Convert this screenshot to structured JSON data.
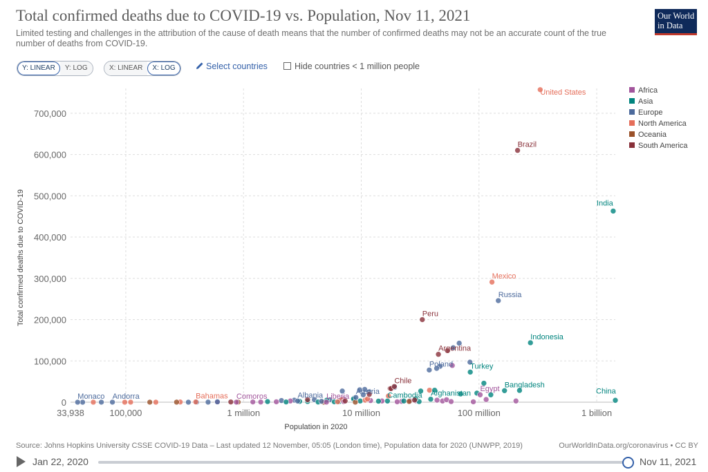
{
  "header": {
    "title": "Total confirmed deaths due to COVID-19 vs. Population, Nov 11, 2021",
    "subtitle": "Limited testing and challenges in the attribution of the cause of death means that the number of confirmed deaths may not be an accurate count of the true number of deaths from COVID-19.",
    "logo_line1": "Our World",
    "logo_line2": "in Data"
  },
  "controls": {
    "y_linear": "Y: LINEAR",
    "y_log": "Y: LOG",
    "x_linear": "X: LINEAR",
    "x_log": "X: LOG",
    "select_countries": "Select countries",
    "hide_small": "Hide countries < 1 million people",
    "pencil_icon": "pencil-icon"
  },
  "footer": {
    "source": "Source: Johns Hopkins University CSSE COVID-19 Data – Last updated 12 November, 05:05 (London time), Population data for 2020 (UNWPP, 2019)",
    "owid": "OurWorldInData.org/coronavirus • CC BY"
  },
  "timeline": {
    "start": "Jan 22, 2020",
    "end": "Nov 11, 2021",
    "position": 1.0
  },
  "colors": {
    "Africa": "#a2559c",
    "Asia": "#00847e",
    "Europe": "#4c6a9c",
    "North America": "#e56e5a",
    "Oceania": "#9a5129",
    "South America": "#883039"
  },
  "chart_data": {
    "type": "scatter",
    "title": "Total confirmed deaths due to COVID-19 vs. Population, Nov 11, 2021",
    "xlabel": "Population in 2020",
    "ylabel": "Total confirmed deaths due to COVID-19",
    "x_scale": "log",
    "y_scale": "linear",
    "xlim": [
      33938,
      1439000000
    ],
    "ylim": [
      0,
      760000
    ],
    "x_ticks": [
      {
        "v": 33938,
        "label": "33,938"
      },
      {
        "v": 100000,
        "label": "100,000"
      },
      {
        "v": 1000000,
        "label": "1 million"
      },
      {
        "v": 10000000,
        "label": "10 million"
      },
      {
        "v": 100000000,
        "label": "100 million"
      },
      {
        "v": 1000000000,
        "label": "1 billion"
      }
    ],
    "y_ticks": [
      {
        "v": 0,
        "label": "0"
      },
      {
        "v": 100000,
        "label": "100,000"
      },
      {
        "v": 200000,
        "label": "200,000"
      },
      {
        "v": 300000,
        "label": "300,000"
      },
      {
        "v": 400000,
        "label": "400,000"
      },
      {
        "v": 500000,
        "label": "500,000"
      },
      {
        "v": 600000,
        "label": "600,000"
      },
      {
        "v": 700000,
        "label": "700,000"
      }
    ],
    "grid": true,
    "legend_position": "right",
    "legend": [
      "Africa",
      "Asia",
      "Europe",
      "North America",
      "Oceania",
      "South America"
    ],
    "points": [
      {
        "label": "United States",
        "x": 331000000,
        "y": 757000,
        "region": "North America"
      },
      {
        "label": "Brazil",
        "x": 212600000,
        "y": 610000,
        "region": "South America"
      },
      {
        "label": "India",
        "x": 1380000000,
        "y": 463000,
        "region": "Asia"
      },
      {
        "label": "Mexico",
        "x": 128900000,
        "y": 291000,
        "region": "North America"
      },
      {
        "label": "Russia",
        "x": 145900000,
        "y": 246000,
        "region": "Europe"
      },
      {
        "label": "Peru",
        "x": 33000000,
        "y": 200000,
        "region": "South America"
      },
      {
        "label": "Indonesia",
        "x": 273500000,
        "y": 144000,
        "region": "Asia"
      },
      {
        "label": "Argentina",
        "x": 45200000,
        "y": 116000,
        "region": "South America"
      },
      {
        "label": "Poland",
        "x": 37800000,
        "y": 78000,
        "region": "Europe"
      },
      {
        "label": "Turkey",
        "x": 84300000,
        "y": 73000,
        "region": "Asia"
      },
      {
        "label": "Chile",
        "x": 19100000,
        "y": 38000,
        "region": "South America"
      },
      {
        "label": "Bangladesh",
        "x": 164700000,
        "y": 28000,
        "region": "Asia"
      },
      {
        "label": "Egypt",
        "x": 102300000,
        "y": 18000,
        "region": "Africa"
      },
      {
        "label": "Austria",
        "x": 9000000,
        "y": 11500,
        "region": "Europe"
      },
      {
        "label": "Afghanistan",
        "x": 38900000,
        "y": 7300,
        "region": "Asia"
      },
      {
        "label": "Albania",
        "x": 2880000,
        "y": 2900,
        "region": "Europe"
      },
      {
        "label": "Liberia",
        "x": 5060000,
        "y": 290,
        "region": "Africa"
      },
      {
        "label": "Cambodia",
        "x": 16700000,
        "y": 2900,
        "region": "Asia"
      },
      {
        "label": "Monaco",
        "x": 39000,
        "y": 40,
        "region": "Europe"
      },
      {
        "label": "Andorra",
        "x": 77000,
        "y": 130,
        "region": "Europe"
      },
      {
        "label": "Bahamas",
        "x": 393000,
        "y": 700,
        "region": "North America"
      },
      {
        "label": "Comoros",
        "x": 870000,
        "y": 148,
        "region": "Africa"
      },
      {
        "label": "China",
        "x": 1439000000,
        "y": 4600,
        "region": "Asia"
      },
      {
        "label": "",
        "x": 60400000,
        "y": 132000,
        "region": "Europe"
      },
      {
        "label": "",
        "x": 67900000,
        "y": 143000,
        "region": "Europe"
      },
      {
        "label": "",
        "x": 83800000,
        "y": 97000,
        "region": "Europe"
      },
      {
        "label": "",
        "x": 46700000,
        "y": 87000,
        "region": "Europe"
      },
      {
        "label": "",
        "x": 43700000,
        "y": 82000,
        "region": "Europe"
      },
      {
        "label": "",
        "x": 54000000,
        "y": 125000,
        "region": "South America"
      },
      {
        "label": "",
        "x": 59300000,
        "y": 89000,
        "region": "Africa"
      },
      {
        "label": "",
        "x": 110000000,
        "y": 46000,
        "region": "Asia"
      },
      {
        "label": "",
        "x": 96000000,
        "y": 22000,
        "region": "Asia"
      },
      {
        "label": "",
        "x": 126000000,
        "y": 18000,
        "region": "Asia"
      },
      {
        "label": "",
        "x": 69800000,
        "y": 20000,
        "region": "Asia"
      },
      {
        "label": "",
        "x": 38000000,
        "y": 29000,
        "region": "North America"
      },
      {
        "label": "",
        "x": 42000000,
        "y": 29000,
        "region": "Asia"
      },
      {
        "label": "",
        "x": 32000000,
        "y": 27000,
        "region": "Asia"
      },
      {
        "label": "",
        "x": 17600000,
        "y": 33000,
        "region": "South America"
      },
      {
        "label": "",
        "x": 19200000,
        "y": 36000,
        "region": "Europe"
      },
      {
        "label": "",
        "x": 10700000,
        "y": 31000,
        "region": "Europe"
      },
      {
        "label": "",
        "x": 9700000,
        "y": 30000,
        "region": "Europe"
      },
      {
        "label": "",
        "x": 6900000,
        "y": 27000,
        "region": "Europe"
      },
      {
        "label": "",
        "x": 11600000,
        "y": 25000,
        "region": "Europe"
      },
      {
        "label": "",
        "x": 10400000,
        "y": 18000,
        "region": "Europe"
      },
      {
        "label": "",
        "x": 8700000,
        "y": 10000,
        "region": "Europe"
      },
      {
        "label": "",
        "x": 5400000,
        "y": 6000,
        "region": "Europe"
      },
      {
        "label": "",
        "x": 2700000,
        "y": 5000,
        "region": "Europe"
      },
      {
        "label": "",
        "x": 4000000,
        "y": 6000,
        "region": "Europe"
      },
      {
        "label": "",
        "x": 2100000,
        "y": 4000,
        "region": "Europe"
      },
      {
        "label": "",
        "x": 7000000,
        "y": 8000,
        "region": "Africa"
      },
      {
        "label": "",
        "x": 12000000,
        "y": 4000,
        "region": "Africa"
      },
      {
        "label": "",
        "x": 15000000,
        "y": 3000,
        "region": "Africa"
      },
      {
        "label": "",
        "x": 22000000,
        "y": 2000,
        "region": "Africa"
      },
      {
        "label": "",
        "x": 26000000,
        "y": 3000,
        "region": "Africa"
      },
      {
        "label": "",
        "x": 29000000,
        "y": 3500,
        "region": "Africa"
      },
      {
        "label": "",
        "x": 44000000,
        "y": 5000,
        "region": "Africa"
      },
      {
        "label": "",
        "x": 49000000,
        "y": 3000,
        "region": "Africa"
      },
      {
        "label": "",
        "x": 53000000,
        "y": 6000,
        "region": "Africa"
      },
      {
        "label": "",
        "x": 58000000,
        "y": 1500,
        "region": "Africa"
      },
      {
        "label": "",
        "x": 31000000,
        "y": 1500,
        "region": "Asia"
      },
      {
        "label": "",
        "x": 29000000,
        "y": 8000,
        "region": "Asia"
      },
      {
        "label": "",
        "x": 23000000,
        "y": 3000,
        "region": "Asia"
      },
      {
        "label": "",
        "x": 14000000,
        "y": 2500,
        "region": "Asia"
      },
      {
        "label": "",
        "x": 9800000,
        "y": 3000,
        "region": "Asia"
      },
      {
        "label": "",
        "x": 8600000,
        "y": 8000,
        "region": "Asia"
      },
      {
        "label": "",
        "x": 6500000,
        "y": 1500,
        "region": "Asia"
      },
      {
        "label": "",
        "x": 5900000,
        "y": 1000,
        "region": "Asia"
      },
      {
        "label": "",
        "x": 3000000,
        "y": 2000,
        "region": "Asia"
      },
      {
        "label": "",
        "x": 4300000,
        "y": 500,
        "region": "Asia"
      },
      {
        "label": "",
        "x": 6800000,
        "y": 6000,
        "region": "North America"
      },
      {
        "label": "",
        "x": 10800000,
        "y": 5000,
        "region": "North America"
      },
      {
        "label": "",
        "x": 11300000,
        "y": 8000,
        "region": "North America"
      },
      {
        "label": "",
        "x": 17000000,
        "y": 15000,
        "region": "North America"
      },
      {
        "label": "",
        "x": 25500000,
        "y": 1900,
        "region": "Oceania"
      },
      {
        "label": "",
        "x": 4800000,
        "y": 30,
        "region": "Oceania"
      },
      {
        "label": "",
        "x": 900000,
        "y": 300,
        "region": "Oceania"
      },
      {
        "label": "",
        "x": 8900000,
        "y": 150,
        "region": "Oceania"
      },
      {
        "label": "",
        "x": 7100000,
        "y": 1500,
        "region": "Africa"
      },
      {
        "label": "",
        "x": 2500000,
        "y": 3000,
        "region": "Africa"
      },
      {
        "label": "",
        "x": 1900000,
        "y": 1000,
        "region": "Africa"
      },
      {
        "label": "",
        "x": 1400000,
        "y": 500,
        "region": "Africa"
      },
      {
        "label": "",
        "x": 1200000,
        "y": 600,
        "region": "Africa"
      },
      {
        "label": "",
        "x": 600000,
        "y": 300,
        "region": "Africa"
      },
      {
        "label": "",
        "x": 500000,
        "y": 200,
        "region": "Europe"
      },
      {
        "label": "",
        "x": 600000,
        "y": 900,
        "region": "Europe"
      },
      {
        "label": "",
        "x": 400000,
        "y": 100,
        "region": "Europe"
      },
      {
        "label": "",
        "x": 340000,
        "y": 40,
        "region": "Europe"
      },
      {
        "label": "",
        "x": 780000,
        "y": 560,
        "region": "South America"
      },
      {
        "label": "",
        "x": 290000,
        "y": 500,
        "region": "North America"
      },
      {
        "label": "",
        "x": 180000,
        "y": 30,
        "region": "North America"
      },
      {
        "label": "",
        "x": 110000,
        "y": 100,
        "region": "North America"
      },
      {
        "label": "",
        "x": 98000,
        "y": 40,
        "region": "North America"
      },
      {
        "label": "",
        "x": 53000,
        "y": 30,
        "region": "North America"
      },
      {
        "label": "",
        "x": 62000,
        "y": 100,
        "region": "Europe"
      },
      {
        "label": "",
        "x": 43000,
        "y": 10,
        "region": "Europe"
      },
      {
        "label": "",
        "x": 160000,
        "y": 90,
        "region": "Oceania"
      },
      {
        "label": "",
        "x": 270000,
        "y": 200,
        "region": "Oceania"
      },
      {
        "label": "",
        "x": 1600000,
        "y": 1500,
        "region": "Asia"
      },
      {
        "label": "",
        "x": 2300000,
        "y": 600,
        "region": "Asia"
      },
      {
        "label": "",
        "x": 3500000,
        "y": 1700,
        "region": "Asia"
      },
      {
        "label": "",
        "x": 4600000,
        "y": 2200,
        "region": "Europe"
      },
      {
        "label": "",
        "x": 5100000,
        "y": 5000,
        "region": "Asia"
      },
      {
        "label": "",
        "x": 6300000,
        "y": 1000,
        "region": "North America"
      },
      {
        "label": "",
        "x": 7300000,
        "y": 3000,
        "region": "South America"
      },
      {
        "label": "",
        "x": 11700000,
        "y": 19000,
        "region": "South America"
      },
      {
        "label": "",
        "x": 17900000,
        "y": 33000,
        "region": "South America"
      },
      {
        "label": "",
        "x": 28400000,
        "y": 5300,
        "region": "South America"
      },
      {
        "label": "",
        "x": 3500000,
        "y": 6000,
        "region": "South America"
      },
      {
        "label": "",
        "x": 20200000,
        "y": 1000,
        "region": "Africa"
      },
      {
        "label": "",
        "x": 206000000,
        "y": 3000,
        "region": "Africa"
      },
      {
        "label": "",
        "x": 115000000,
        "y": 6500,
        "region": "Africa"
      },
      {
        "label": "",
        "x": 89500000,
        "y": 1000,
        "region": "Africa"
      },
      {
        "label": "",
        "x": 220900000,
        "y": 28500,
        "region": "Asia"
      }
    ]
  }
}
